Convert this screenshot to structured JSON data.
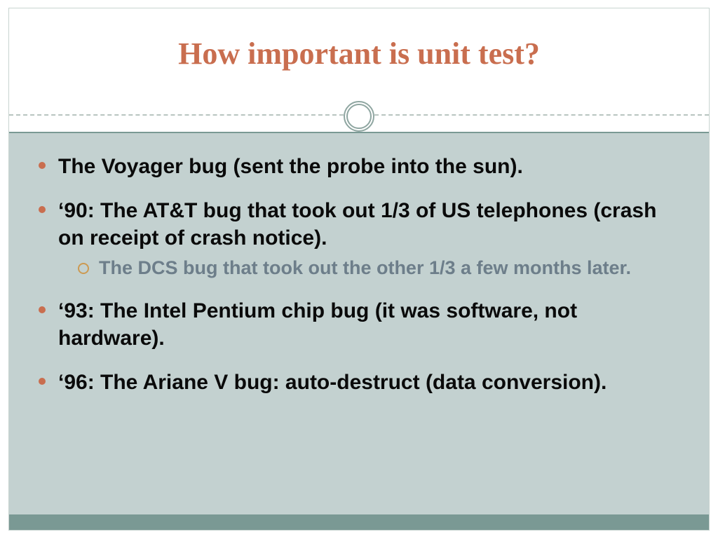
{
  "slide": {
    "title": "How important is unit test?",
    "title_color": "#c96e4f",
    "title_font": "Georgia",
    "title_fontsize": 44,
    "background_color": "#ffffff",
    "body_background": "#c3d1d0",
    "footer_bar_color": "#7a9994",
    "divider_ring_color": "#8fa6a1",
    "bullets": [
      {
        "text": "The Voyager bug (sent the probe into the sun).",
        "sub": []
      },
      {
        "text": "‘90: The AT&T bug that took out 1/3 of US telephones (crash on receipt of crash notice).",
        "sub": [
          {
            "text": "The DCS bug that took out the other 1/3 a few months later."
          }
        ]
      },
      {
        "text": "‘93: The Intel Pentium chip bug (it was software, not hardware).",
        "sub": []
      },
      {
        "text": "‘96: The Ariane V bug: auto-destruct (data conversion).",
        "sub": []
      }
    ],
    "bullet_color_lvl1": "#c96e4f",
    "bullet_text_color_lvl1": "#0a0a0a",
    "bullet_fontsize_lvl1": 30,
    "bullet_color_lvl2": "#cc9a52",
    "bullet_text_color_lvl2": "#6d7e8a",
    "bullet_fontsize_lvl2": 27
  }
}
